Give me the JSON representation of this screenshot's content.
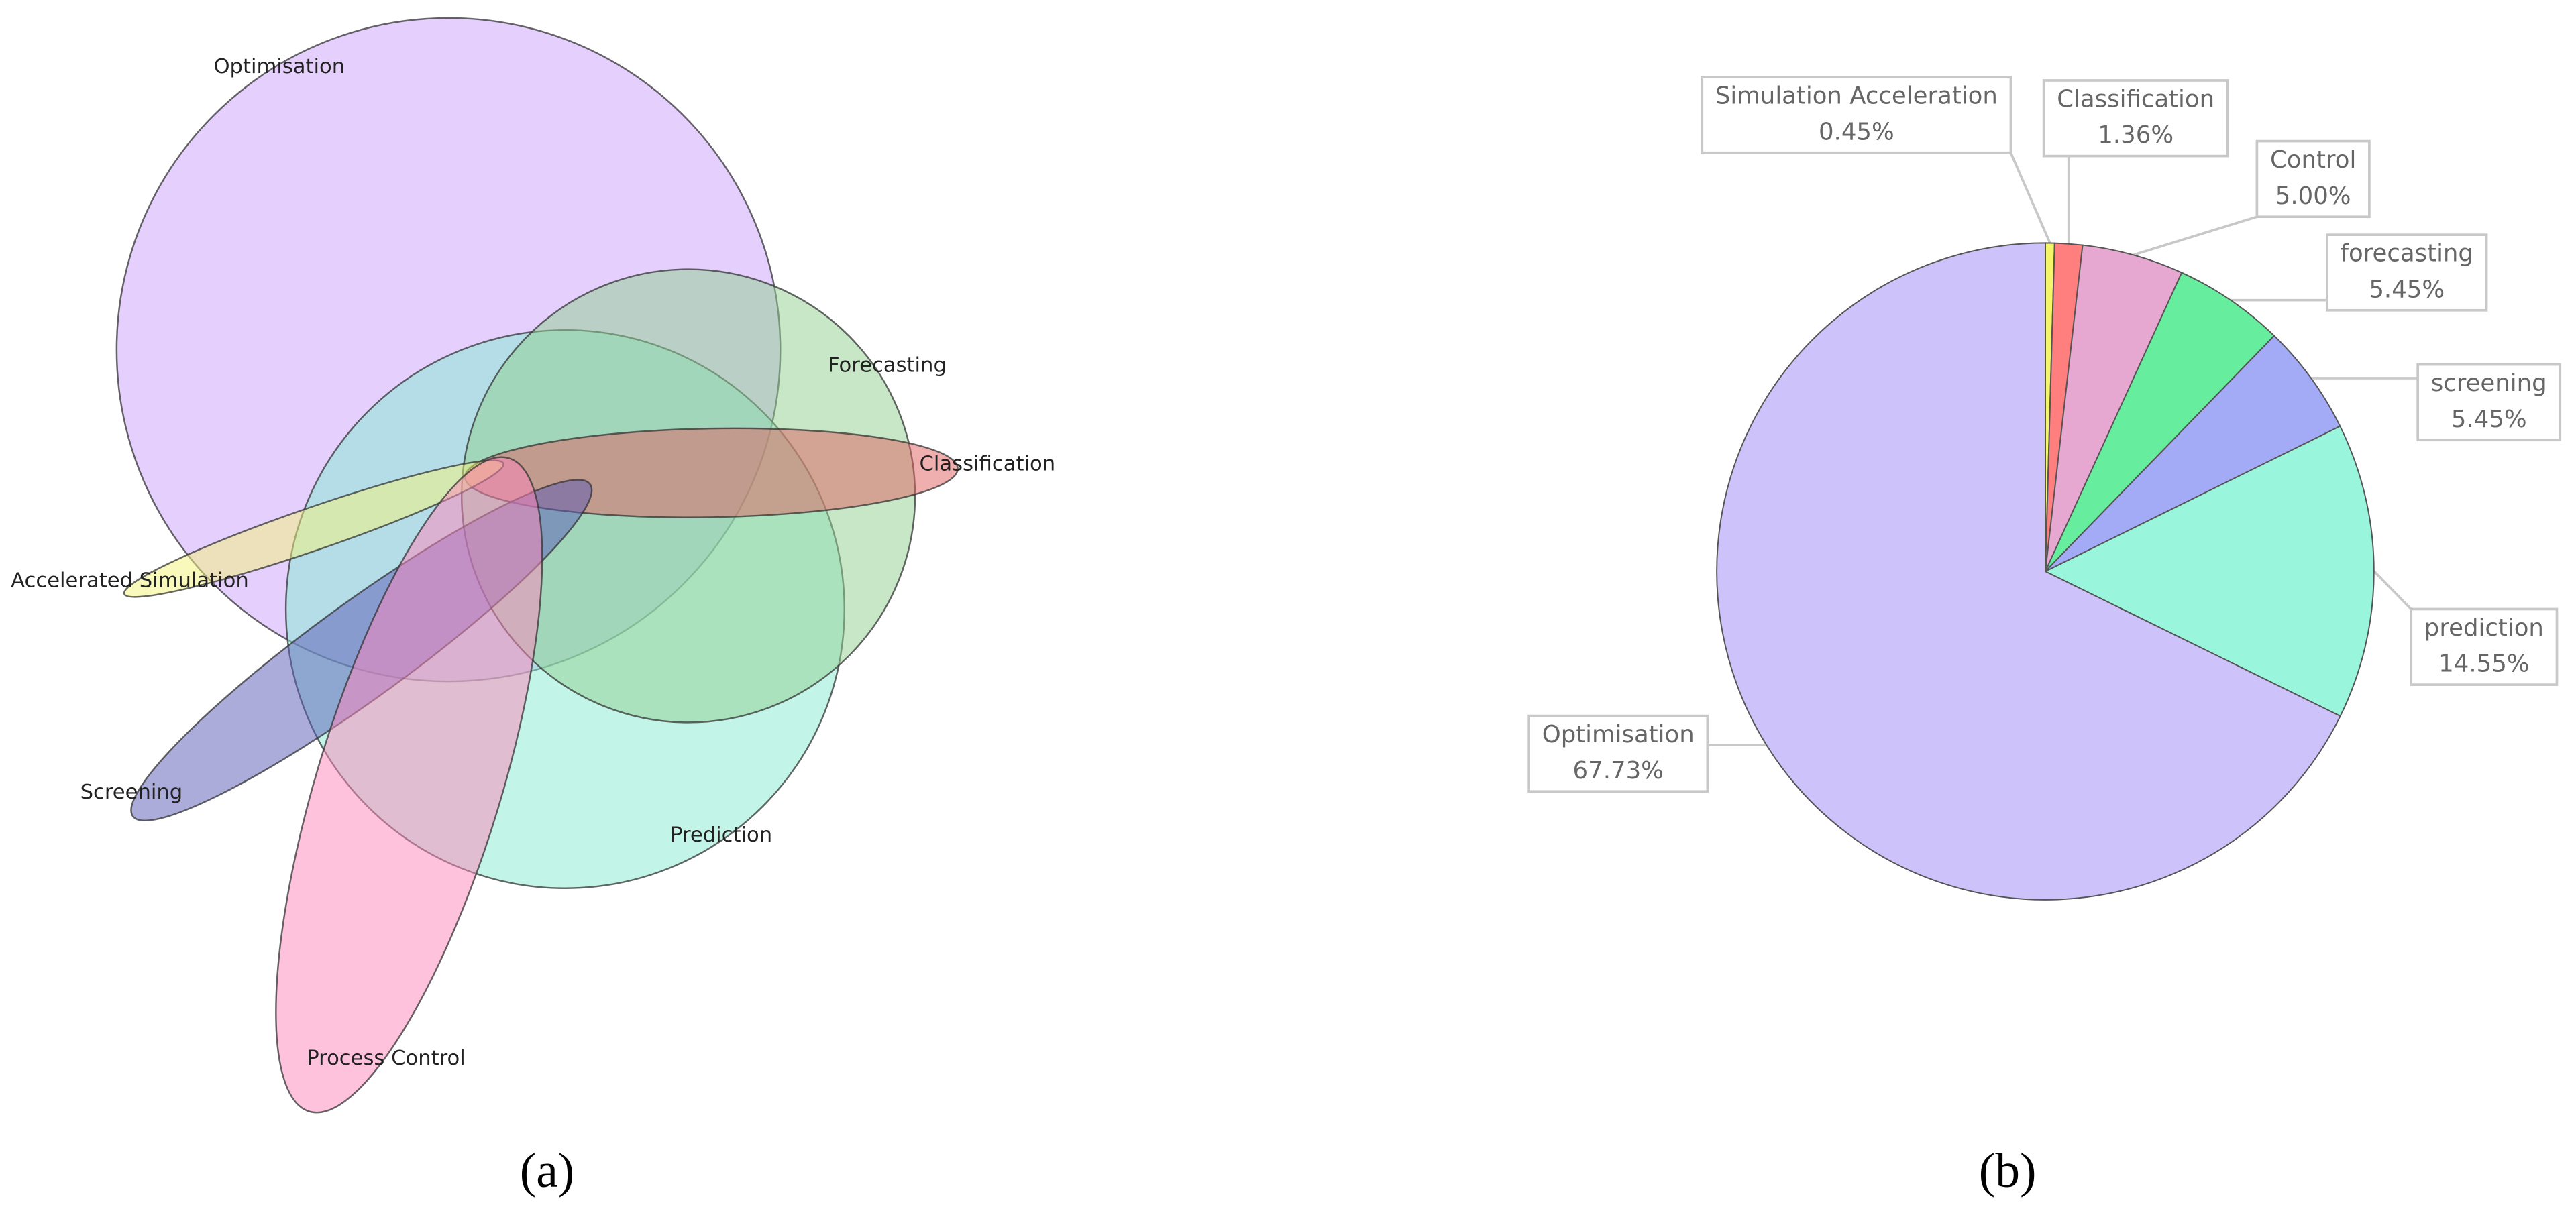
{
  "chart_data": [
    {
      "type": "venn",
      "caption": "(a)",
      "sets": [
        {
          "name": "Optimisation",
          "color": "#c9a0fb"
        },
        {
          "name": "Prediction",
          "color": "#86ebd2"
        },
        {
          "name": "Forecasting",
          "color": "#8fd08f"
        },
        {
          "name": "Classification",
          "color": "#e06060"
        },
        {
          "name": "Accelerated Simulation",
          "color": "#f3f37a"
        },
        {
          "name": "Screening",
          "color": "#5a5ab8"
        },
        {
          "name": "Process Control",
          "color": "#ff86bc"
        }
      ]
    },
    {
      "type": "pie",
      "caption": "(b)",
      "categories": [
        "Simulation Acceleration",
        "Classification",
        "Control",
        "forecasting",
        "screening",
        "prediction",
        "Optimisation"
      ],
      "values": [
        0.45,
        1.36,
        5.0,
        5.45,
        5.45,
        14.55,
        67.73
      ],
      "value_labels": [
        "0.45%",
        "1.36%",
        "5.00%",
        "5.45%",
        "5.45%",
        "14.55%",
        "67.73%"
      ],
      "colors": [
        "#f5f56a",
        "#ff7f7f",
        "#e6a8d0",
        "#66ee9e",
        "#a3aaf6",
        "#99f6dc",
        "#cdc3fa"
      ]
    }
  ]
}
